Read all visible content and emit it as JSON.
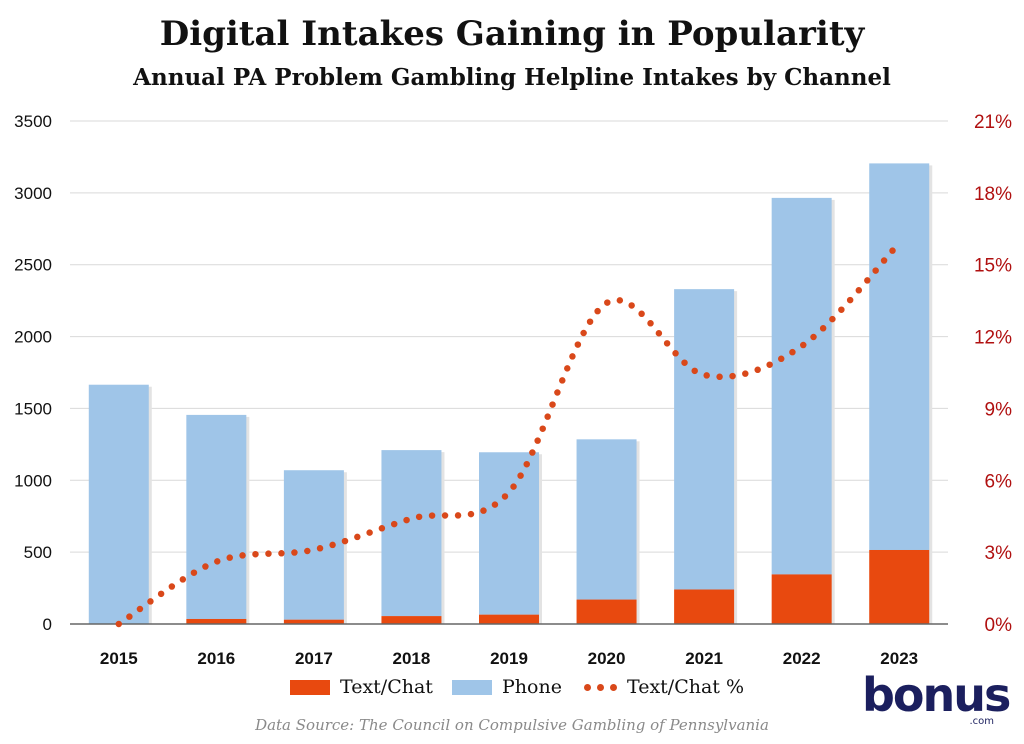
{
  "title": "Digital Intakes Gaining in Popularity",
  "subtitle": "Annual PA Problem Gambling Helpline Intakes by Channel",
  "source": "Data Source: The Council on Compulsive Gambling of Pennsylvania",
  "logo": {
    "text": "bonus",
    "sub": ".com"
  },
  "legend": {
    "text_chat": "Text/Chat",
    "phone": "Phone",
    "pct": "Text/Chat %"
  },
  "colors": {
    "phone": "#9fc5e8",
    "text_chat": "#e8490f",
    "pct_line": "#d9481a",
    "right_axis": "#b01010",
    "grid": "#d9d9d9"
  },
  "chart_data": {
    "type": "bar",
    "title": "Digital Intakes Gaining in Popularity",
    "subtitle": "Annual PA Problem Gambling Helpline Intakes by Channel",
    "categories": [
      "2015",
      "2016",
      "2017",
      "2018",
      "2019",
      "2020",
      "2021",
      "2022",
      "2023"
    ],
    "stacked": true,
    "series": [
      {
        "name": "Text/Chat",
        "values": [
          0,
          35,
          30,
          55,
          65,
          170,
          240,
          345,
          515
        ]
      },
      {
        "name": "Phone",
        "values": [
          1665,
          1420,
          1040,
          1155,
          1130,
          1115,
          2090,
          2620,
          2690
        ]
      }
    ],
    "line_series": {
      "name": "Text/Chat %",
      "axis": "right",
      "style": "dotted",
      "values": [
        0.0,
        2.6,
        3.1,
        4.4,
        5.5,
        13.4,
        10.4,
        11.6,
        15.9
      ]
    },
    "ylim": [
      0,
      3500
    ],
    "yticks": [
      "0",
      "500",
      "1000",
      "1500",
      "2000",
      "2500",
      "3000",
      "3500"
    ],
    "y2lim": [
      0,
      21
    ],
    "y2ticks": [
      "0%",
      "3%",
      "6%",
      "9%",
      "12%",
      "15%",
      "18%",
      "21%"
    ],
    "grid": true,
    "legend_position": "bottom"
  }
}
